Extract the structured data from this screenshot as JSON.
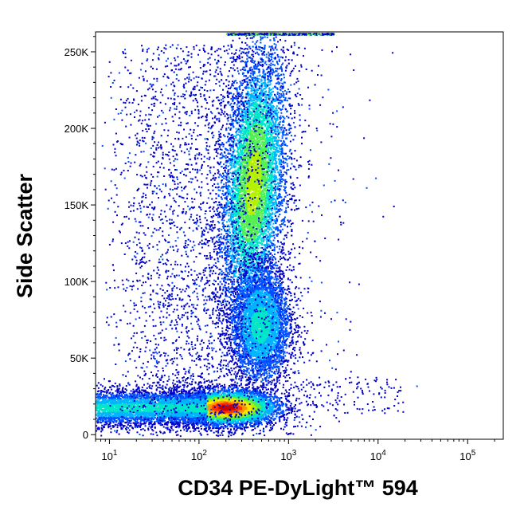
{
  "chart_data": {
    "type": "scatter",
    "subtype": "flow-cytometry density dot plot",
    "xlabel": "CD34 PE-DyLight™ 594",
    "ylabel": "Side Scatter",
    "x_scale": "log",
    "x_range": [
      7,
      250000
    ],
    "y_range": [
      -3000,
      263000
    ],
    "x_ticks": [
      {
        "value": 10,
        "base": "10",
        "exp": "1"
      },
      {
        "value": 100,
        "base": "10",
        "exp": "2"
      },
      {
        "value": 1000,
        "base": "10",
        "exp": "3"
      },
      {
        "value": 10000,
        "base": "10",
        "exp": "4"
      },
      {
        "value": 100000,
        "base": "10",
        "exp": "5"
      }
    ],
    "y_ticks": [
      {
        "value": 0,
        "label": "0"
      },
      {
        "value": 50000,
        "label": "50K"
      },
      {
        "value": 100000,
        "label": "100K"
      },
      {
        "value": 150000,
        "label": "150K"
      },
      {
        "value": 200000,
        "label": "200K"
      },
      {
        "value": 250000,
        "label": "250K"
      }
    ],
    "populations": [
      {
        "x": 200,
        "y": 18000,
        "relative_density": "highest",
        "color": "#e8200a"
      },
      {
        "x": 400,
        "y": 165000,
        "relative_density": "high",
        "color": "#7ce31c"
      },
      {
        "x": 480,
        "y": 72000,
        "relative_density": "medium",
        "color": "#1ec9c8"
      }
    ],
    "density_colormap": [
      "#0000c8",
      "#0050ff",
      "#00b4ff",
      "#00e6c8",
      "#50f050",
      "#b4f000",
      "#ffe600",
      "#ff9600",
      "#ff3200",
      "#c80000"
    ],
    "grid": false,
    "legend": "none"
  }
}
